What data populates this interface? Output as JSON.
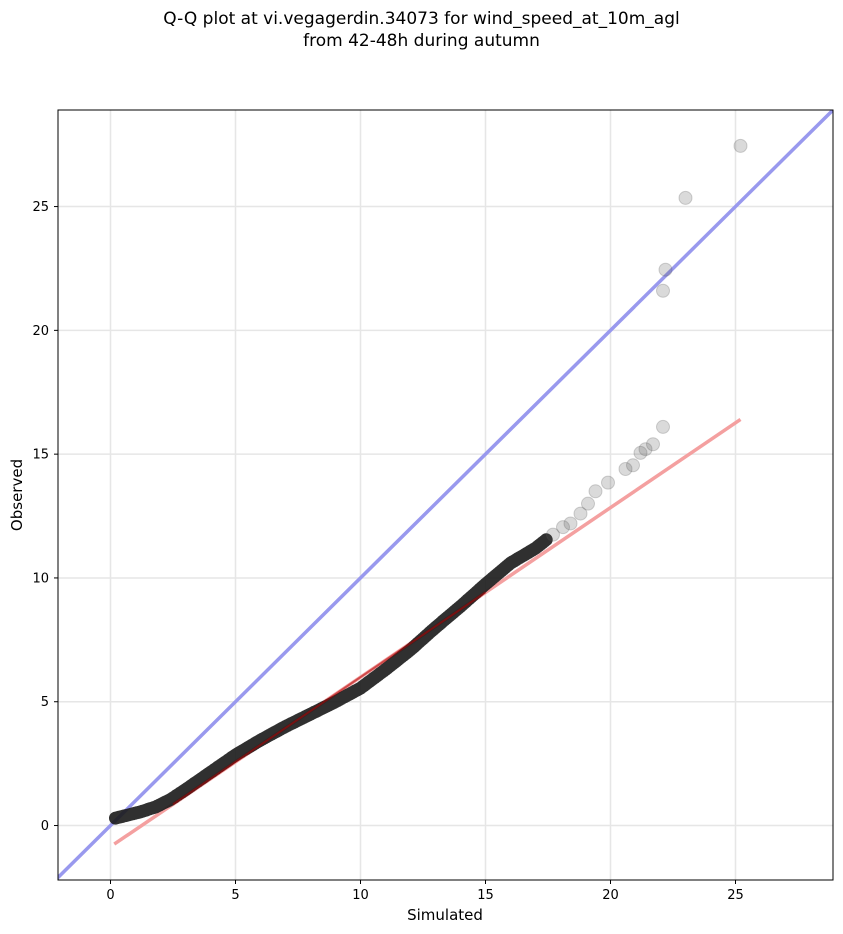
{
  "chart_data": {
    "type": "scatter",
    "title_lines": [
      "Q-Q plot at vi.vegagerdin.34073 for wind_speed_at_10m_agl",
      "from 42-48h during autumn"
    ],
    "xlabel": "Simulated",
    "ylabel": "Observed",
    "xlim": [
      -2.1,
      28.9
    ],
    "ylim": [
      -2.2,
      28.9
    ],
    "x_ticks": [
      0,
      5,
      10,
      15,
      20,
      25
    ],
    "y_ticks": [
      0,
      5,
      10,
      15,
      20,
      25
    ],
    "grid": true,
    "reference_line": {
      "name": "y = x",
      "color": "#9999ee"
    },
    "fit_line": {
      "x": [
        0.15,
        25.2
      ],
      "y": [
        -0.75,
        16.4
      ],
      "color": "#f4a0a0"
    },
    "dense_curve": {
      "x": [
        0.2,
        0.6,
        1.2,
        1.8,
        2.4,
        3.0,
        4.0,
        5.0,
        6.0,
        7.0,
        8.0,
        9.0,
        10.0,
        11.0,
        12.0,
        13.0,
        14.0,
        15.0,
        16.0,
        17.0,
        17.5
      ],
      "y": [
        0.3,
        0.4,
        0.55,
        0.75,
        1.05,
        1.45,
        2.15,
        2.85,
        3.45,
        4.0,
        4.5,
        5.0,
        5.55,
        6.3,
        7.1,
        8.0,
        8.85,
        9.75,
        10.6,
        11.2,
        11.6
      ]
    },
    "points": [
      {
        "x": 17.7,
        "y": 11.75
      },
      {
        "x": 18.1,
        "y": 12.05
      },
      {
        "x": 18.4,
        "y": 12.2
      },
      {
        "x": 18.8,
        "y": 12.6
      },
      {
        "x": 19.1,
        "y": 13.0
      },
      {
        "x": 19.4,
        "y": 13.5
      },
      {
        "x": 19.9,
        "y": 13.85
      },
      {
        "x": 20.6,
        "y": 14.4
      },
      {
        "x": 20.9,
        "y": 14.55
      },
      {
        "x": 21.2,
        "y": 15.05
      },
      {
        "x": 21.4,
        "y": 15.2
      },
      {
        "x": 21.7,
        "y": 15.4
      },
      {
        "x": 22.1,
        "y": 16.1
      },
      {
        "x": 22.1,
        "y": 21.6
      },
      {
        "x": 22.2,
        "y": 22.45
      },
      {
        "x": 23.0,
        "y": 25.35
      },
      {
        "x": 25.2,
        "y": 27.45
      }
    ]
  }
}
